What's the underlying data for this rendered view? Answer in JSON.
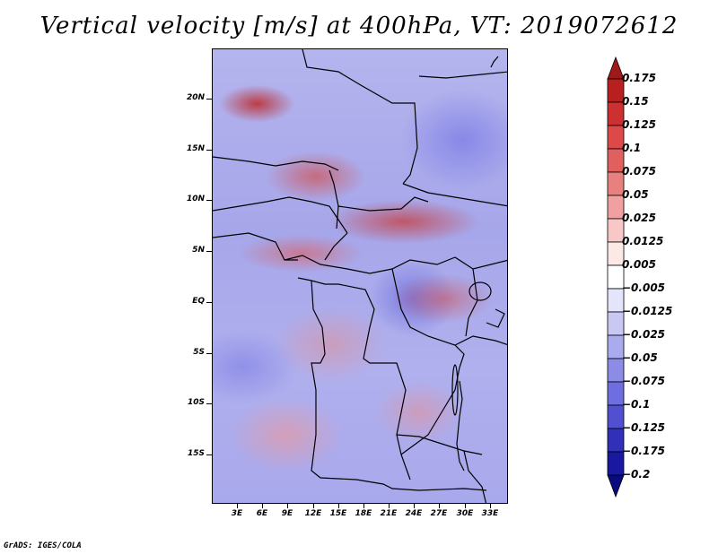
{
  "title": "Vertical velocity [m/s] at 400hPa, VT: 2019072612",
  "credit": "GrADS: IGES/COLA",
  "map": {
    "lat_labels": [
      "20N",
      "15N",
      "10N",
      "5N",
      "EQ",
      "5S",
      "10S",
      "15S"
    ],
    "lon_labels": [
      "3E",
      "6E",
      "9E",
      "12E",
      "15E",
      "18E",
      "21E",
      "24E",
      "27E",
      "30E",
      "33E"
    ]
  },
  "colorbar": {
    "labels": [
      "0.175",
      "0.15",
      "0.125",
      "0.1",
      "0.075",
      "0.05",
      "0.025",
      "0.0125",
      "0.005",
      "−0.005",
      "−0.0125",
      "−0.025",
      "−0.05",
      "−0.075",
      "−0.1",
      "−0.125",
      "−0.175",
      "−0.2"
    ],
    "colors": [
      "#a01818",
      "#b82020",
      "#cc3030",
      "#dd4848",
      "#e06060",
      "#e88080",
      "#f0a0a0",
      "#f8c8c8",
      "#fde8e8",
      "#ffffff",
      "#e4e4fa",
      "#c8c8f2",
      "#aaaaee",
      "#8c8ce6",
      "#6e6ee0",
      "#5050d0",
      "#3030b8",
      "#1818a0",
      "#0a0a80"
    ]
  }
}
